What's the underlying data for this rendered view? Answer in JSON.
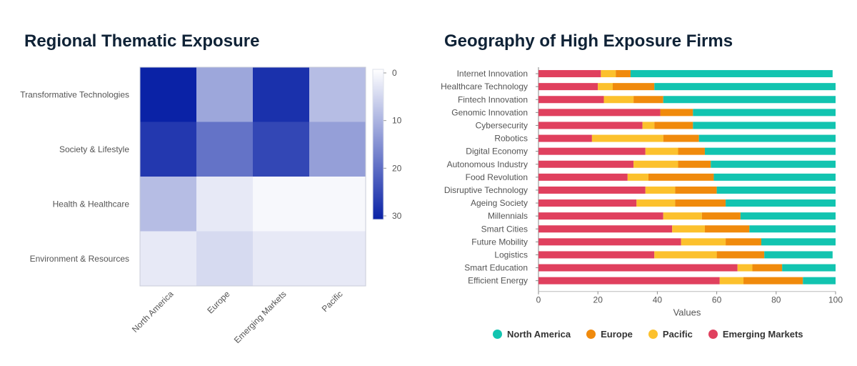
{
  "chart_data": [
    {
      "type": "heatmap",
      "title": "Regional Thematic Exposure",
      "rows": [
        "Transformative Technologies",
        "Society & Lifestyle",
        "Health & Healthcare",
        "Environment & Resources"
      ],
      "columns": [
        "North America",
        "Europe",
        "Emerging Markets",
        "Pacific"
      ],
      "values": [
        [
          31,
          12,
          28,
          9
        ],
        [
          27,
          19,
          25,
          13
        ],
        [
          9,
          3,
          1,
          1
        ],
        [
          3,
          5,
          3,
          3
        ]
      ],
      "colorbar": {
        "min": 0,
        "max": 30,
        "ticks": [
          "0",
          "10",
          "20",
          "30"
        ]
      },
      "color_low": "#ffffff",
      "color_high": "#0a22a6"
    },
    {
      "type": "bar",
      "orientation": "horizontal",
      "stacked": true,
      "title": "Geography of High Exposure Firms",
      "xlabel": "Values",
      "xlim": [
        0,
        100
      ],
      "xticks": [
        "0",
        "20",
        "40",
        "60",
        "80",
        "100"
      ],
      "legend_position": "bottom",
      "categories": [
        "Internet Innovation",
        "Healthcare Technology",
        "Fintech Innovation",
        "Genomic Innovation",
        "Cybersecurity",
        "Robotics",
        "Digital Economy",
        "Autonomous Industry",
        "Food Revolution",
        "Disruptive Technology",
        "Ageing Society",
        "Millennials",
        "Smart Cities",
        "Future Mobility",
        "Logistics",
        "Smart Education",
        "Efficient Energy"
      ],
      "series": [
        {
          "name": "Emerging Markets",
          "color": "#e0405e",
          "values": [
            21,
            20,
            22,
            41,
            35,
            18,
            36,
            32,
            30,
            36,
            33,
            42,
            45,
            48,
            39,
            67,
            61
          ]
        },
        {
          "name": "Pacific",
          "color": "#fcc12d",
          "values": [
            5,
            5,
            10,
            0,
            4,
            24,
            11,
            15,
            7,
            10,
            13,
            13,
            11,
            15,
            21,
            5,
            8
          ]
        },
        {
          "name": "Europe",
          "color": "#f08a0c",
          "values": [
            5,
            14,
            10,
            11,
            13,
            12,
            9,
            11,
            22,
            14,
            17,
            13,
            15,
            12,
            16,
            10,
            20
          ]
        },
        {
          "name": "North America",
          "color": "#12c4b0",
          "values": [
            68,
            61,
            58,
            48,
            48,
            46,
            44,
            42,
            41,
            40,
            37,
            32,
            29,
            25,
            23,
            18,
            11
          ]
        }
      ],
      "legend": [
        {
          "name": "North America",
          "color": "#12c4b0"
        },
        {
          "name": "Europe",
          "color": "#f08a0c"
        },
        {
          "name": "Pacific",
          "color": "#fcc12d"
        },
        {
          "name": "Emerging Markets",
          "color": "#e0405e"
        }
      ]
    }
  ]
}
